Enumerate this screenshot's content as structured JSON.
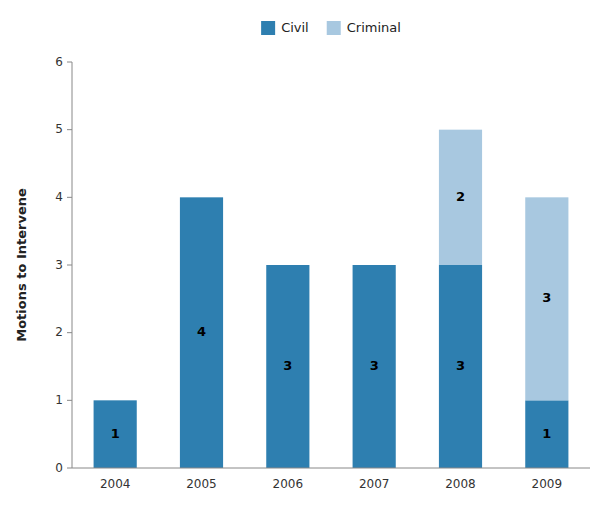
{
  "chart_data": {
    "type": "bar",
    "stacked": true,
    "categories": [
      "2004",
      "2005",
      "2006",
      "2007",
      "2008",
      "2009"
    ],
    "series": [
      {
        "name": "Civil",
        "color": "#2e7fb0",
        "values": [
          1,
          4,
          3,
          3,
          3,
          1
        ]
      },
      {
        "name": "Criminal",
        "color": "#a8c8e0",
        "values": [
          0,
          0,
          0,
          0,
          2,
          3
        ]
      }
    ],
    "ylabel": "Motions to Intervene",
    "ylim": [
      0,
      6
    ],
    "yticks": [
      0,
      1,
      2,
      3,
      4,
      5,
      6
    ],
    "grid": false,
    "legend": "top",
    "data_labels": true
  }
}
